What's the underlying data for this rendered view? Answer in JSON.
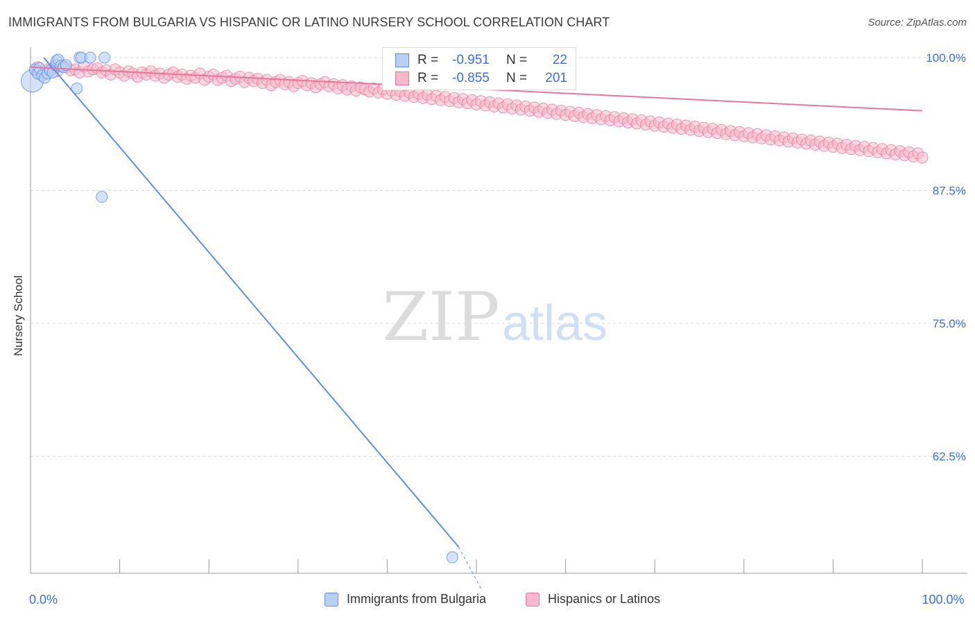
{
  "title": "IMMIGRANTS FROM BULGARIA VS HISPANIC OR LATINO NURSERY SCHOOL CORRELATION CHART",
  "source": "Source: ZipAtlas.com",
  "watermark": {
    "zip": "ZIP",
    "atlas": "atlas"
  },
  "colors": {
    "blue": "#5b8fe6",
    "blue_fill": "#b9d0f6",
    "pink": "#e8759d",
    "pink_fill": "#f7b9cc",
    "tick_text": "#3a6fd8"
  },
  "stats": {
    "r_label": "R =",
    "n_label": "N =",
    "series": [
      {
        "r": "-0.951",
        "n": "22"
      },
      {
        "r": "-0.855",
        "n": "201"
      }
    ]
  },
  "legend": [
    "Immigrants from Bulgaria",
    "Hispanics or Latinos"
  ],
  "chart_data": {
    "type": "scatter",
    "xlabel": "",
    "ylabel": "Nursery School",
    "xlim": [
      0,
      100
    ],
    "ylim": [
      51.5,
      101.5
    ],
    "x_ticks": [
      0,
      10,
      20,
      30,
      40,
      50,
      60,
      70,
      80,
      90,
      100
    ],
    "x_tick_labels": [
      {
        "x": 0,
        "label": "0.0%"
      },
      {
        "x": 100,
        "label": "100.0%"
      }
    ],
    "y_ticks": [
      100.0,
      87.5,
      75.0,
      62.5
    ],
    "y_tick_labels": [
      "100.0%",
      "87.5%",
      "75.0%",
      "62.5%"
    ],
    "grid": true,
    "series": [
      {
        "name": "Immigrants from Bulgaria",
        "color": "#5b8fe6",
        "points": [
          [
            0.2,
            97.8
          ],
          [
            0.5,
            98.9
          ],
          [
            0.8,
            98.5
          ],
          [
            1.0,
            99.0
          ],
          [
            1.3,
            98.3
          ],
          [
            1.6,
            98.1
          ],
          [
            1.9,
            98.5
          ],
          [
            2.2,
            98.8
          ],
          [
            2.5,
            98.6
          ],
          [
            2.8,
            99.3
          ],
          [
            2.9,
            99.7
          ],
          [
            3.1,
            99.8
          ],
          [
            3.4,
            99.2
          ],
          [
            3.7,
            99.1
          ],
          [
            4.0,
            99.3
          ],
          [
            5.2,
            97.1
          ],
          [
            5.5,
            100.0
          ],
          [
            5.7,
            100.0
          ],
          [
            6.7,
            100.0
          ],
          [
            8.3,
            100.0
          ],
          [
            8.0,
            86.9
          ],
          [
            47.3,
            53.0
          ]
        ],
        "trend": [
          [
            1.5,
            100.0
          ],
          [
            50.0,
            52.0
          ]
        ]
      },
      {
        "name": "Hispanics or Latinos",
        "color": "#e8759d",
        "points": [
          [
            0.5,
            98.8
          ],
          [
            0.8,
            99.1
          ],
          [
            1.0,
            98.7
          ],
          [
            1.5,
            98.5
          ],
          [
            2.0,
            98.9
          ],
          [
            2.5,
            99.0
          ],
          [
            3.0,
            98.7
          ],
          [
            3.5,
            99.3
          ],
          [
            4.0,
            99.1
          ],
          [
            4.5,
            98.8
          ],
          [
            5.0,
            98.9
          ],
          [
            5.5,
            98.6
          ],
          [
            6.0,
            99.2
          ],
          [
            6.5,
            98.7
          ],
          [
            7.0,
            98.9
          ],
          [
            7.5,
            99.0
          ],
          [
            8.0,
            98.6
          ],
          [
            8.5,
            98.8
          ],
          [
            9.0,
            98.4
          ],
          [
            9.5,
            98.9
          ],
          [
            10.0,
            98.6
          ],
          [
            10.5,
            98.3
          ],
          [
            11.0,
            98.7
          ],
          [
            11.5,
            98.5
          ],
          [
            12.0,
            98.2
          ],
          [
            12.5,
            98.6
          ],
          [
            13.0,
            98.4
          ],
          [
            13.5,
            98.7
          ],
          [
            14.0,
            98.3
          ],
          [
            14.5,
            98.5
          ],
          [
            15.0,
            98.1
          ],
          [
            15.5,
            98.4
          ],
          [
            16.0,
            98.6
          ],
          [
            16.5,
            98.2
          ],
          [
            17.0,
            98.4
          ],
          [
            17.5,
            98.0
          ],
          [
            18.0,
            98.3
          ],
          [
            18.5,
            98.1
          ],
          [
            19.0,
            98.5
          ],
          [
            19.5,
            97.9
          ],
          [
            20.0,
            98.2
          ],
          [
            20.5,
            98.4
          ],
          [
            21.0,
            97.9
          ],
          [
            21.5,
            98.1
          ],
          [
            22.0,
            98.3
          ],
          [
            22.5,
            97.8
          ],
          [
            23.0,
            98.0
          ],
          [
            23.5,
            98.2
          ],
          [
            24.0,
            97.7
          ],
          [
            24.5,
            98.1
          ],
          [
            25.0,
            97.8
          ],
          [
            25.5,
            98.0
          ],
          [
            26.0,
            97.6
          ],
          [
            26.5,
            97.9
          ],
          [
            27.0,
            97.4
          ],
          [
            27.5,
            97.7
          ],
          [
            28.0,
            97.9
          ],
          [
            28.5,
            97.5
          ],
          [
            29.0,
            97.7
          ],
          [
            29.5,
            97.3
          ],
          [
            30.0,
            97.6
          ],
          [
            30.5,
            97.8
          ],
          [
            31.0,
            97.4
          ],
          [
            31.5,
            97.6
          ],
          [
            32.0,
            97.2
          ],
          [
            32.5,
            97.5
          ],
          [
            33.0,
            97.7
          ],
          [
            33.5,
            97.3
          ],
          [
            34.0,
            97.5
          ],
          [
            34.5,
            97.1
          ],
          [
            35.0,
            97.4
          ],
          [
            35.5,
            97.0
          ],
          [
            36.0,
            97.3
          ],
          [
            36.5,
            96.9
          ],
          [
            37.0,
            97.2
          ],
          [
            37.5,
            97.0
          ],
          [
            38.0,
            96.8
          ],
          [
            38.5,
            97.1
          ],
          [
            39.0,
            96.7
          ],
          [
            39.5,
            97.0
          ],
          [
            40.0,
            96.6
          ],
          [
            40.5,
            96.9
          ],
          [
            41.0,
            96.5
          ],
          [
            41.5,
            96.8
          ],
          [
            42.0,
            96.4
          ],
          [
            42.5,
            96.7
          ],
          [
            43.0,
            96.3
          ],
          [
            43.5,
            96.6
          ],
          [
            44.0,
            96.2
          ],
          [
            44.5,
            96.5
          ],
          [
            45.0,
            96.1
          ],
          [
            45.5,
            96.4
          ],
          [
            46.0,
            96.0
          ],
          [
            46.5,
            96.3
          ],
          [
            47.0,
            95.9
          ],
          [
            47.5,
            96.2
          ],
          [
            48.0,
            95.8
          ],
          [
            48.5,
            96.1
          ],
          [
            49.0,
            95.7
          ],
          [
            49.5,
            96.0
          ],
          [
            50.0,
            95.6
          ],
          [
            50.5,
            95.9
          ],
          [
            51.0,
            95.5
          ],
          [
            51.5,
            95.8
          ],
          [
            52.0,
            95.4
          ],
          [
            52.5,
            95.7
          ],
          [
            53.0,
            95.3
          ],
          [
            53.5,
            95.6
          ],
          [
            54.0,
            95.2
          ],
          [
            54.5,
            95.5
          ],
          [
            55.0,
            95.1
          ],
          [
            55.5,
            95.4
          ],
          [
            56.0,
            95.0
          ],
          [
            56.5,
            95.3
          ],
          [
            57.0,
            94.9
          ],
          [
            57.5,
            95.2
          ],
          [
            58.0,
            94.8
          ],
          [
            58.5,
            95.1
          ],
          [
            59.0,
            94.7
          ],
          [
            59.5,
            95.0
          ],
          [
            60.0,
            94.6
          ],
          [
            60.5,
            94.9
          ],
          [
            61.0,
            94.5
          ],
          [
            61.5,
            94.8
          ],
          [
            62.0,
            94.4
          ],
          [
            62.5,
            94.7
          ],
          [
            63.0,
            94.3
          ],
          [
            63.5,
            94.6
          ],
          [
            64.0,
            94.2
          ],
          [
            64.5,
            94.5
          ],
          [
            65.0,
            94.1
          ],
          [
            65.5,
            94.4
          ],
          [
            66.0,
            94.0
          ],
          [
            66.5,
            94.3
          ],
          [
            67.0,
            93.9
          ],
          [
            67.5,
            94.2
          ],
          [
            68.0,
            93.8
          ],
          [
            68.5,
            94.1
          ],
          [
            69.0,
            93.7
          ],
          [
            69.5,
            94.0
          ],
          [
            70.0,
            93.6
          ],
          [
            70.5,
            93.9
          ],
          [
            71.0,
            93.5
          ],
          [
            71.5,
            93.8
          ],
          [
            72.0,
            93.4
          ],
          [
            72.5,
            93.7
          ],
          [
            73.0,
            93.3
          ],
          [
            73.5,
            93.6
          ],
          [
            74.0,
            93.2
          ],
          [
            74.5,
            93.5
          ],
          [
            75.0,
            93.1
          ],
          [
            75.5,
            93.4
          ],
          [
            76.0,
            93.0
          ],
          [
            76.5,
            93.3
          ],
          [
            77.0,
            92.9
          ],
          [
            77.5,
            93.2
          ],
          [
            78.0,
            92.8
          ],
          [
            78.5,
            93.1
          ],
          [
            79.0,
            92.7
          ],
          [
            79.5,
            93.0
          ],
          [
            80.0,
            92.6
          ],
          [
            80.5,
            92.9
          ],
          [
            81.0,
            92.5
          ],
          [
            81.5,
            92.8
          ],
          [
            82.0,
            92.4
          ],
          [
            82.5,
            92.7
          ],
          [
            83.0,
            92.3
          ],
          [
            83.5,
            92.6
          ],
          [
            84.0,
            92.2
          ],
          [
            84.5,
            92.5
          ],
          [
            85.0,
            92.1
          ],
          [
            85.5,
            92.4
          ],
          [
            86.0,
            92.0
          ],
          [
            86.5,
            92.3
          ],
          [
            87.0,
            91.9
          ],
          [
            87.5,
            92.2
          ],
          [
            88.0,
            91.8
          ],
          [
            88.5,
            92.1
          ],
          [
            89.0,
            91.7
          ],
          [
            89.5,
            92.0
          ],
          [
            90.0,
            91.6
          ],
          [
            90.5,
            91.9
          ],
          [
            91.0,
            91.5
          ],
          [
            91.5,
            91.8
          ],
          [
            92.0,
            91.4
          ],
          [
            92.5,
            91.7
          ],
          [
            93.0,
            91.3
          ],
          [
            93.5,
            91.6
          ],
          [
            94.0,
            91.2
          ],
          [
            94.5,
            91.5
          ],
          [
            95.0,
            91.1
          ],
          [
            95.5,
            91.4
          ],
          [
            96.0,
            91.0
          ],
          [
            96.5,
            91.3
          ],
          [
            97.0,
            90.9
          ],
          [
            97.5,
            91.2
          ],
          [
            98.0,
            90.8
          ],
          [
            98.5,
            91.1
          ],
          [
            99.0,
            90.7
          ],
          [
            99.5,
            91.0
          ],
          [
            100.0,
            90.6
          ]
        ],
        "trend": [
          [
            0.0,
            99.1
          ],
          [
            100.0,
            95.0
          ]
        ]
      }
    ]
  }
}
